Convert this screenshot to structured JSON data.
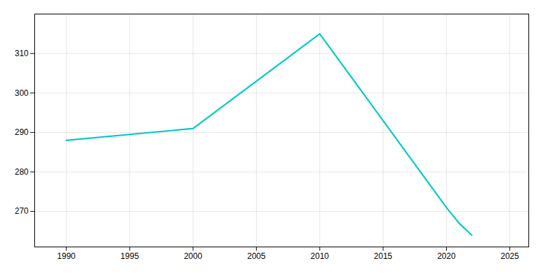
{
  "chart_data": {
    "type": "line",
    "x": [
      1990,
      2000,
      2010,
      2020,
      2021,
      2022
    ],
    "values": [
      288,
      291,
      315,
      271,
      267,
      264
    ],
    "color": "#00c8c8",
    "xlim": [
      1987.5,
      2026.5
    ],
    "ylim": [
      261,
      320
    ],
    "xticks": [
      1990,
      1995,
      2000,
      2005,
      2010,
      2015,
      2020,
      2025
    ],
    "yticks": [
      270,
      280,
      290,
      300,
      310
    ],
    "grid": true
  }
}
